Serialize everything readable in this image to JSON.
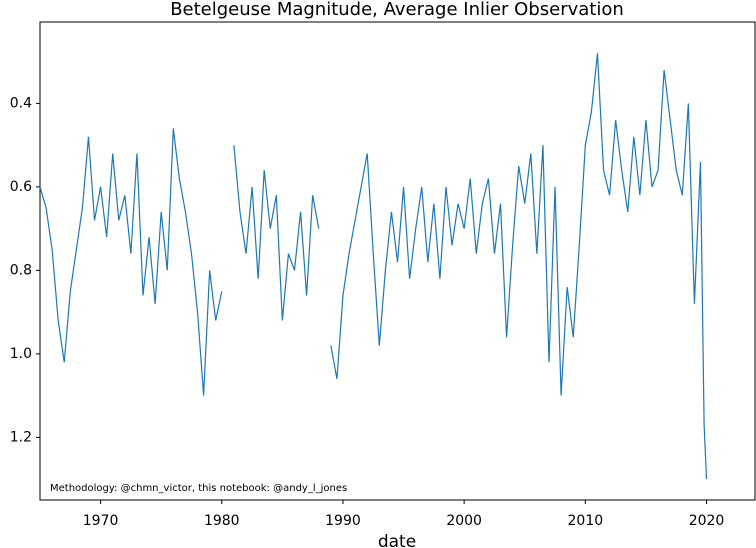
{
  "chart_data": {
    "type": "line",
    "title": "Betelgeuse Magnitude, Average Inlier Observation",
    "x_label": "date",
    "annotation": "Methodology: @chmn_victor, this notebook: @andy_l_jones",
    "x": [
      1965,
      1965.5,
      1966,
      1966.5,
      1967,
      1967.5,
      1968,
      1968.5,
      1969,
      1969.5,
      1970,
      1970.5,
      1971,
      1971.5,
      1972,
      1972.5,
      1973,
      1973.5,
      1974,
      1974.5,
      1975,
      1975.5,
      1976,
      1976.5,
      1977,
      1977.5,
      1978,
      1978.5,
      1979,
      1979.5,
      1980,
      1980.5,
      1981,
      1981.5,
      1982,
      1982.5,
      1983,
      1983.5,
      1984,
      1984.5,
      1985,
      1985.5,
      1986,
      1986.5,
      1987,
      1987.5,
      1988,
      1988.5,
      1989,
      1989.5,
      1990,
      1990.5,
      1991,
      1991.5,
      1992,
      1992.5,
      1993,
      1993.5,
      1994,
      1994.5,
      1995,
      1995.5,
      1996,
      1996.5,
      1997,
      1997.5,
      1998,
      1998.5,
      1999,
      1999.5,
      2000,
      2000.5,
      2001,
      2001.5,
      2002,
      2002.5,
      2003,
      2003.5,
      2004,
      2004.5,
      2005,
      2005.5,
      2006,
      2006.5,
      2007,
      2007.5,
      2008,
      2008.5,
      2009,
      2009.5,
      2010,
      2010.5,
      2011,
      2011.5,
      2012,
      2012.5,
      2013,
      2013.5,
      2014,
      2014.5,
      2015,
      2015.5,
      2016,
      2016.5,
      2017,
      2017.5,
      2018,
      2018.5,
      2019,
      2019.5,
      2019.8,
      2020
    ],
    "series": [
      {
        "name": "magnitude",
        "color": "#1f77b4",
        "values": [
          0.6,
          0.65,
          0.75,
          0.92,
          1.02,
          0.85,
          0.75,
          0.65,
          0.48,
          0.68,
          0.6,
          0.72,
          0.52,
          0.68,
          0.62,
          0.76,
          0.52,
          0.86,
          0.72,
          0.88,
          0.66,
          0.8,
          0.46,
          0.58,
          0.66,
          0.76,
          0.9,
          1.1,
          0.8,
          0.92,
          0.85,
          null,
          0.5,
          0.66,
          0.76,
          0.6,
          0.82,
          0.56,
          0.7,
          0.62,
          0.92,
          0.76,
          0.8,
          0.66,
          0.86,
          0.62,
          0.7,
          null,
          0.98,
          1.06,
          0.86,
          0.76,
          0.68,
          0.6,
          0.52,
          0.76,
          0.98,
          0.8,
          0.66,
          0.78,
          0.6,
          0.82,
          0.7,
          0.6,
          0.78,
          0.64,
          0.82,
          0.6,
          0.74,
          0.64,
          0.7,
          0.58,
          0.76,
          0.64,
          0.58,
          0.76,
          0.64,
          0.96,
          0.74,
          0.55,
          0.64,
          0.52,
          0.76,
          0.5,
          1.02,
          0.6,
          1.1,
          0.84,
          0.96,
          0.74,
          0.5,
          0.42,
          0.28,
          0.56,
          0.62,
          0.44,
          0.56,
          0.66,
          0.48,
          0.62,
          0.44,
          0.6,
          0.56,
          0.32,
          0.44,
          0.56,
          0.62,
          0.4,
          0.88,
          0.54,
          1.17,
          1.3
        ]
      }
    ],
    "xlim": [
      1965,
      2024
    ],
    "xticks": [
      1970,
      1980,
      1990,
      2000,
      2010,
      2020
    ],
    "ylim": [
      0.205,
      1.35
    ],
    "y_inverted": true,
    "yticks": [
      0.4,
      0.6,
      0.8,
      {
        "value": 1,
        "label": "1.0"
      },
      1.2
    ]
  }
}
